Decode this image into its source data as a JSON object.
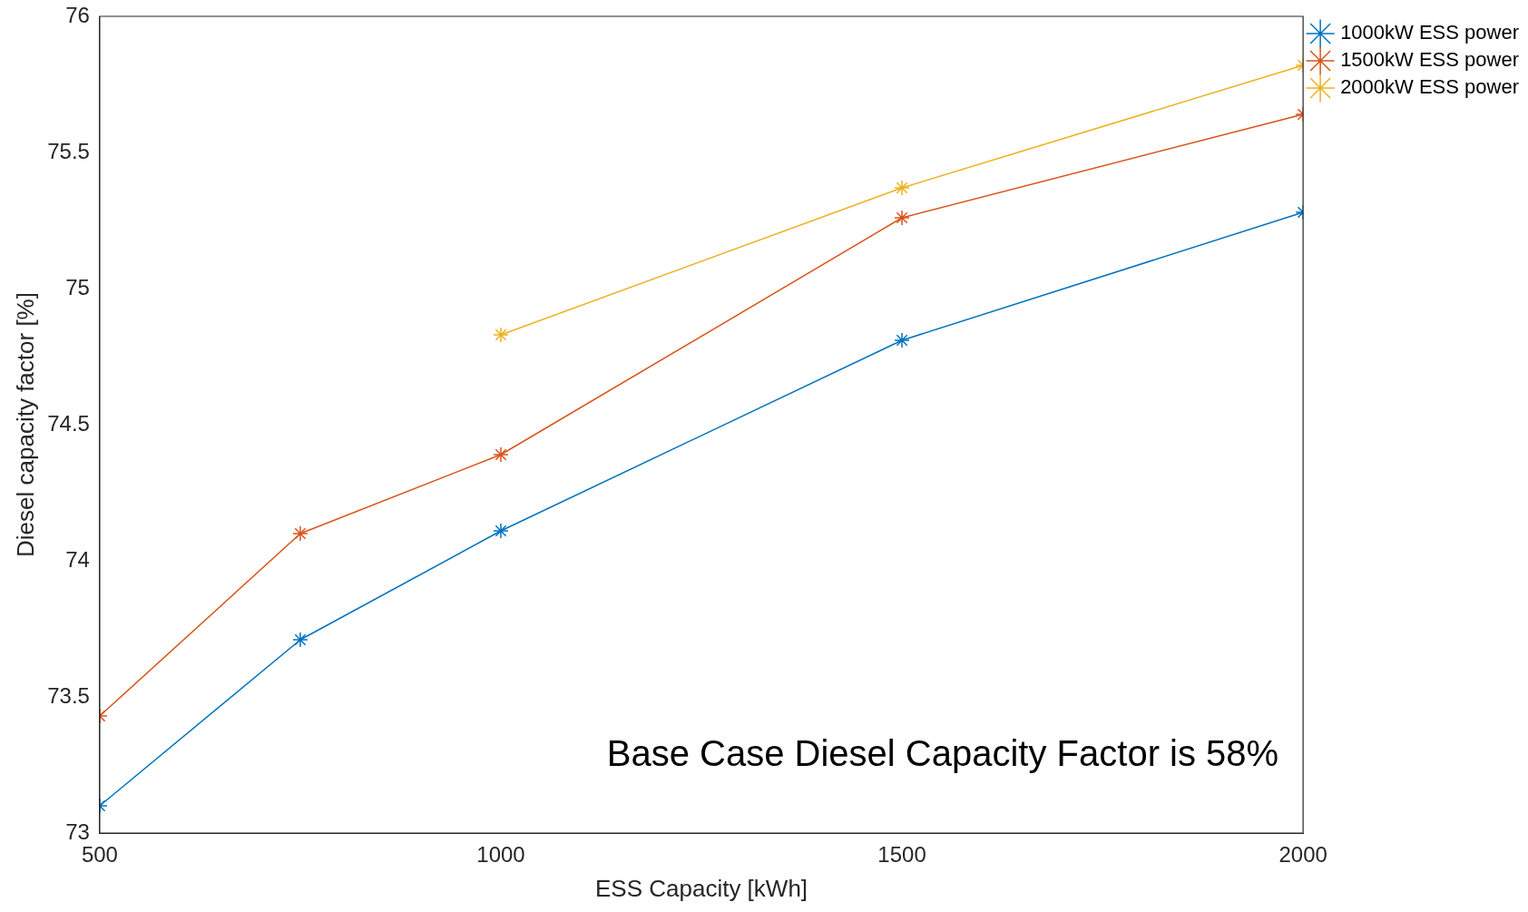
{
  "chart_data": {
    "type": "line",
    "xlabel": "ESS Capacity [kWh]",
    "ylabel": "Diesel capacity factor [%]",
    "xlim": [
      500,
      2000
    ],
    "xticks": [
      500,
      1000,
      1500,
      2000
    ],
    "ylim": [
      73,
      76
    ],
    "yticks": [
      73,
      73.5,
      74,
      74.5,
      75,
      75.5,
      76
    ],
    "grid": false,
    "legend": "top right",
    "marker": "cross",
    "line_style": "solid",
    "annotations": [
      "Base Case Diesel Capacity Factor is 58%"
    ],
    "series": [
      {
        "name": "1000kW ESS power",
        "color": "#0072bd",
        "x": [
          500,
          750,
          1000,
          1500,
          2000
        ],
        "values": [
          73.1,
          73.71,
          74.11,
          74.81,
          75.28
        ]
      },
      {
        "name": "1500kW ESS power",
        "color": "#d95319",
        "x": [
          500,
          750,
          1000,
          1500,
          2000
        ],
        "values": [
          73.43,
          74.1,
          74.39,
          75.26,
          75.64
        ]
      },
      {
        "name": "2000kW ESS power",
        "color": "#edb120",
        "x": [
          1000,
          1500,
          2000
        ],
        "values": [
          74.83,
          75.37,
          75.82
        ]
      }
    ]
  }
}
